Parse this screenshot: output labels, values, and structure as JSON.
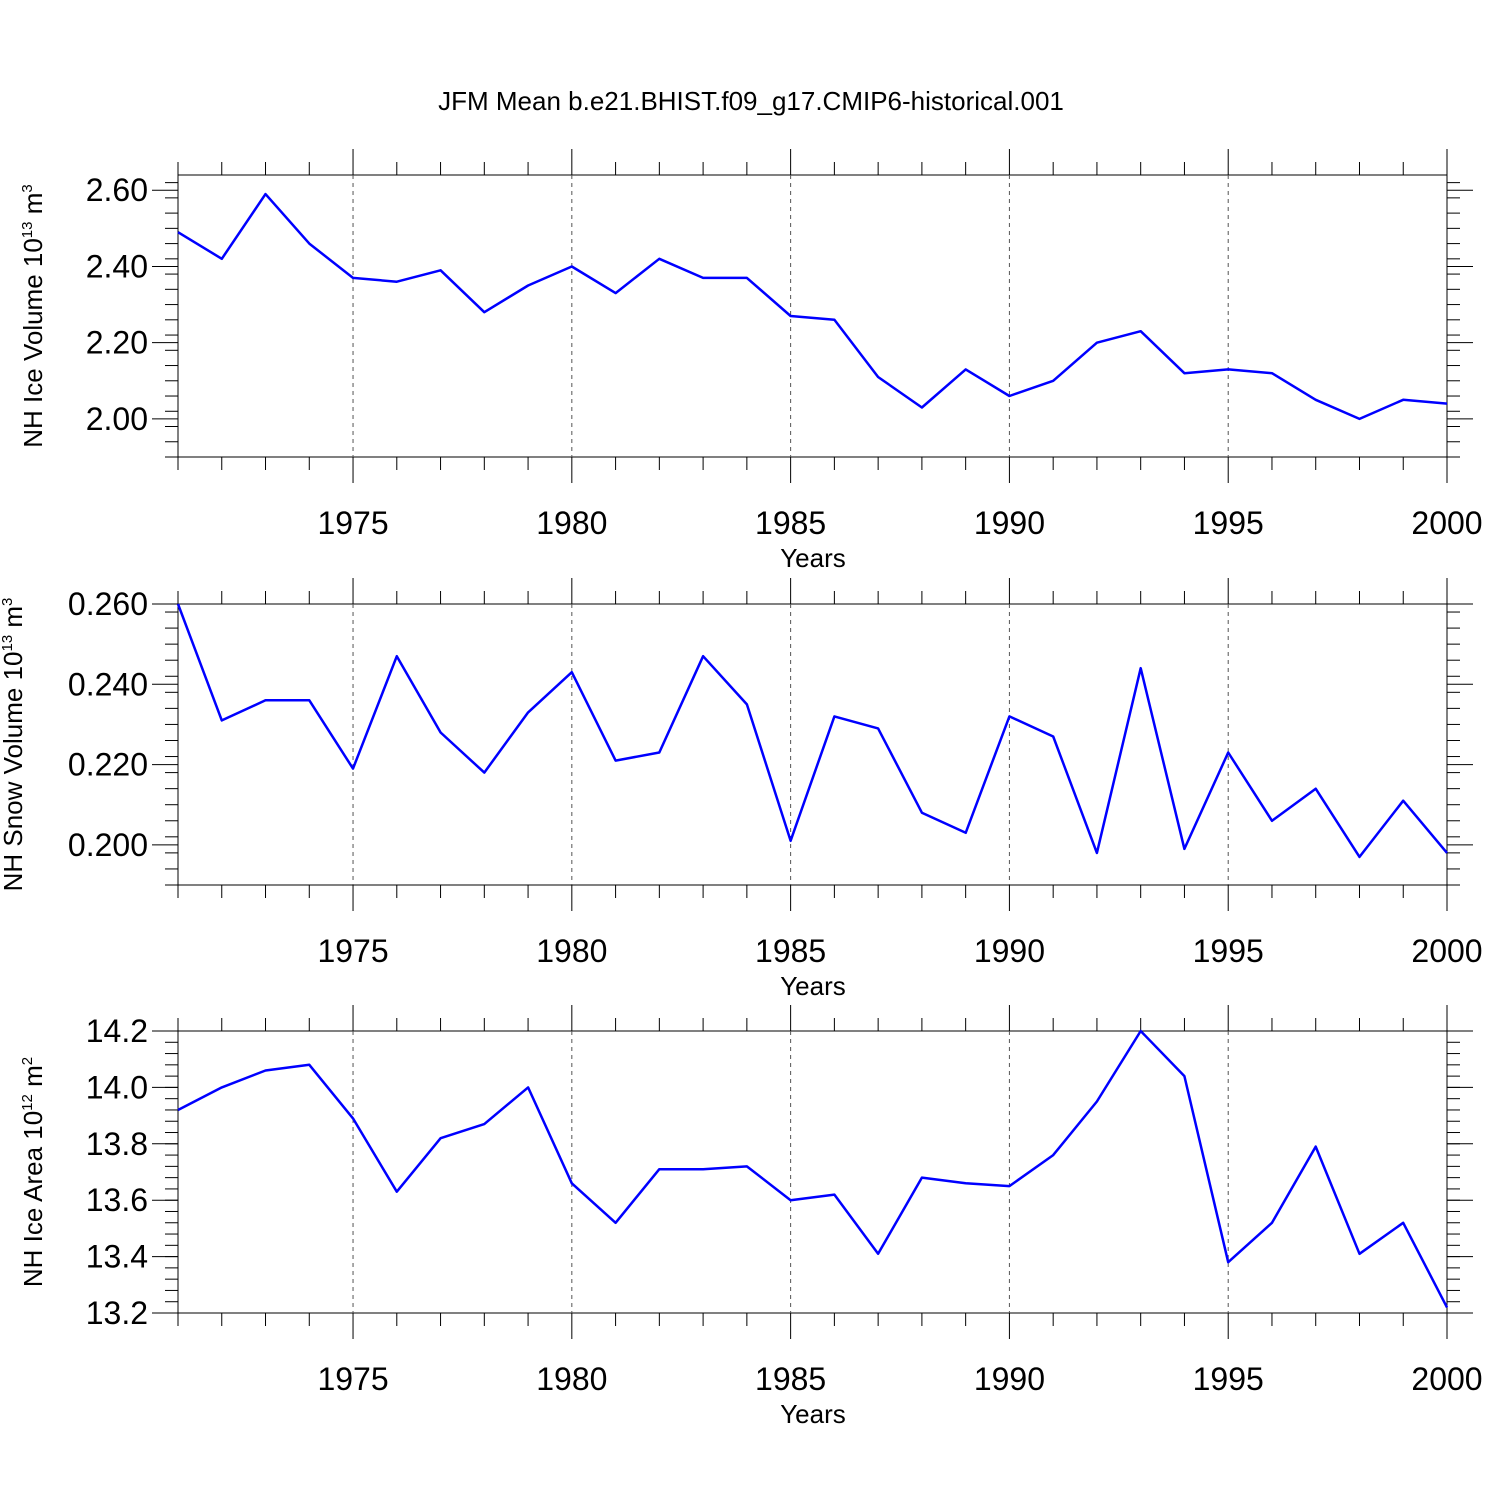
{
  "figure_title": "JFM Mean b.e21.BHIST.f09_g17.CMIP6-historical.001",
  "colors": {
    "line": "#0000ff",
    "axis": "#000000",
    "grid": "#555555"
  },
  "chart_data": [
    {
      "type": "line",
      "xlabel": "Years",
      "ylabel": {
        "main": "NH Ice Volume 10",
        "sup1": "13",
        "mid": " m",
        "sup2": "3"
      },
      "xlim": [
        1971,
        2000
      ],
      "ylim": [
        1.9,
        2.64
      ],
      "x_ticks": [
        1975,
        1980,
        1985,
        1990,
        1995,
        2000
      ],
      "x_tick_labels": [
        "1975",
        "1980",
        "1985",
        "1990",
        "1995",
        "2000"
      ],
      "y_ticks": [
        2.0,
        2.2,
        2.4,
        2.6
      ],
      "y_tick_labels": [
        "2.00",
        "2.20",
        "2.40",
        "2.60"
      ],
      "y_minor_step": 0.04,
      "grid": "x-dashed",
      "x": [
        1971,
        1972,
        1973,
        1974,
        1975,
        1976,
        1977,
        1978,
        1979,
        1980,
        1981,
        1982,
        1983,
        1984,
        1985,
        1986,
        1987,
        1988,
        1989,
        1990,
        1991,
        1992,
        1993,
        1994,
        1995,
        1996,
        1997,
        1998,
        1999,
        2000
      ],
      "series": [
        {
          "values": [
            2.49,
            2.42,
            2.59,
            2.46,
            2.37,
            2.36,
            2.39,
            2.28,
            2.35,
            2.4,
            2.33,
            2.42,
            2.37,
            2.37,
            2.27,
            2.26,
            2.11,
            2.03,
            2.13,
            2.06,
            2.1,
            2.2,
            2.23,
            2.12,
            2.13,
            2.12,
            2.05,
            2.0,
            2.05,
            2.04
          ]
        }
      ]
    },
    {
      "type": "line",
      "xlabel": "Years",
      "ylabel": {
        "main": "NH Snow Volume 10",
        "sup1": "13",
        "mid": " m",
        "sup2": "3"
      },
      "xlim": [
        1971,
        2000
      ],
      "ylim": [
        0.19,
        0.26
      ],
      "x_ticks": [
        1975,
        1980,
        1985,
        1990,
        1995,
        2000
      ],
      "x_tick_labels": [
        "1975",
        "1980",
        "1985",
        "1990",
        "1995",
        "2000"
      ],
      "y_ticks": [
        0.2,
        0.22,
        0.24,
        0.26
      ],
      "y_tick_labels": [
        "0.200",
        "0.220",
        "0.240",
        "0.260"
      ],
      "y_minor_step": 0.004,
      "grid": "x-dashed",
      "x": [
        1971,
        1972,
        1973,
        1974,
        1975,
        1976,
        1977,
        1978,
        1979,
        1980,
        1981,
        1982,
        1983,
        1984,
        1985,
        1986,
        1987,
        1988,
        1989,
        1990,
        1991,
        1992,
        1993,
        1994,
        1995,
        1996,
        1997,
        1998,
        1999,
        2000
      ],
      "series": [
        {
          "values": [
            0.26,
            0.231,
            0.236,
            0.236,
            0.219,
            0.247,
            0.228,
            0.218,
            0.233,
            0.243,
            0.221,
            0.223,
            0.247,
            0.235,
            0.201,
            0.232,
            0.229,
            0.208,
            0.203,
            0.232,
            0.227,
            0.198,
            0.244,
            0.199,
            0.223,
            0.206,
            0.214,
            0.197,
            0.211,
            0.198
          ]
        }
      ]
    },
    {
      "type": "line",
      "xlabel": "Years",
      "ylabel": {
        "main": "NH Ice Area 10",
        "sup1": "12",
        "mid": " m",
        "sup2": "2"
      },
      "xlim": [
        1971,
        2000
      ],
      "ylim": [
        13.2,
        14.2
      ],
      "x_ticks": [
        1975,
        1980,
        1985,
        1990,
        1995,
        2000
      ],
      "x_tick_labels": [
        "1975",
        "1980",
        "1985",
        "1990",
        "1995",
        "2000"
      ],
      "y_ticks": [
        13.2,
        13.4,
        13.6,
        13.8,
        14.0,
        14.2
      ],
      "y_tick_labels": [
        "13.2",
        "13.4",
        "13.6",
        "13.8",
        "14.0",
        "14.2"
      ],
      "y_minor_step": 0.04,
      "grid": "x-dashed",
      "x": [
        1971,
        1972,
        1973,
        1974,
        1975,
        1976,
        1977,
        1978,
        1979,
        1980,
        1981,
        1982,
        1983,
        1984,
        1985,
        1986,
        1987,
        1988,
        1989,
        1990,
        1991,
        1992,
        1993,
        1994,
        1995,
        1996,
        1997,
        1998,
        1999,
        2000
      ],
      "series": [
        {
          "values": [
            13.92,
            14.0,
            14.06,
            14.08,
            13.89,
            13.63,
            13.82,
            13.87,
            14.0,
            13.66,
            13.52,
            13.71,
            13.71,
            13.72,
            13.6,
            13.62,
            13.41,
            13.68,
            13.66,
            13.65,
            13.76,
            13.95,
            14.2,
            14.04,
            13.38,
            13.52,
            13.79,
            13.41,
            13.52,
            13.22
          ]
        }
      ]
    }
  ]
}
